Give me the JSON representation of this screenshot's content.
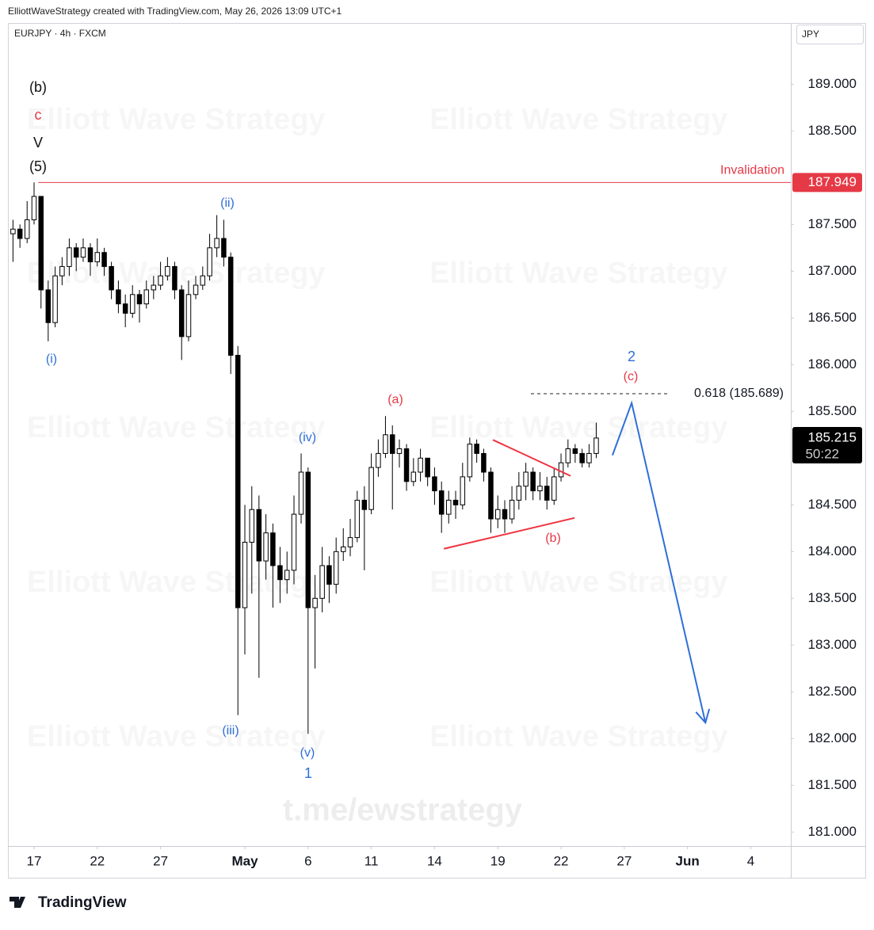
{
  "header": {
    "credit": "ElliottWaveStrategy created with TradingView.com, May 26, 2026 13:09 UTC+1",
    "logo": "TradingView"
  },
  "chart_data": {
    "type": "candlestick",
    "symbol": "EURJPY · 4h · FXCM",
    "currency": "JPY",
    "watermark": "Elliott Wave Strategy",
    "channel": "t.me/ewstrategy",
    "countdown": "50:22",
    "xlim": [
      -1.24,
      35.9
    ],
    "xticks": [
      {
        "value": 0,
        "label": "17"
      },
      {
        "value": 3,
        "label": "22"
      },
      {
        "value": 6,
        "label": "27"
      },
      {
        "value": 10,
        "label": "May"
      },
      {
        "value": 13,
        "label": "6"
      },
      {
        "value": 16,
        "label": "11"
      },
      {
        "value": 19,
        "label": "14"
      },
      {
        "value": 22,
        "label": "19"
      },
      {
        "value": 25,
        "label": "22"
      },
      {
        "value": 28,
        "label": "27"
      },
      {
        "value": 31,
        "label": "Jun"
      },
      {
        "value": 34,
        "label": "4"
      }
    ],
    "ylim": [
      180.85,
      189.63
    ],
    "yticks": [
      {
        "value": 181,
        "label": "181.000"
      },
      {
        "value": 181.5,
        "label": "181.500"
      },
      {
        "value": 182,
        "label": "182.000"
      },
      {
        "value": 182.5,
        "label": "182.500"
      },
      {
        "value": 183,
        "label": "183.000"
      },
      {
        "value": 183.5,
        "label": "183.500"
      },
      {
        "value": 184,
        "label": "184.000"
      },
      {
        "value": 184.5,
        "label": "184.500"
      },
      {
        "value": 185.5,
        "label": "185.500"
      },
      {
        "value": 186,
        "label": "186.000"
      },
      {
        "value": 186.5,
        "label": "186.500"
      },
      {
        "value": 187,
        "label": "187.000"
      },
      {
        "value": 187.5,
        "label": "187.500"
      },
      {
        "value": 188.5,
        "label": "188.500"
      },
      {
        "value": 189,
        "label": "189.000"
      }
    ],
    "x": [
      -1,
      -0.67,
      -0.33,
      0,
      0.33,
      0.67,
      1,
      1.33,
      1.67,
      2,
      2.33,
      2.67,
      3,
      3.33,
      3.67,
      4,
      4.33,
      4.67,
      5,
      5.33,
      5.67,
      6,
      6.33,
      6.67,
      7,
      7.33,
      7.67,
      8,
      8.33,
      8.67,
      9,
      9.33,
      9.67,
      10,
      10.33,
      10.67,
      11,
      11.33,
      11.67,
      12,
      12.33,
      12.67,
      13,
      13.33,
      13.67,
      14,
      14.33,
      14.67,
      15,
      15.33,
      15.67,
      16,
      16.33,
      16.67,
      17,
      17.33,
      17.67,
      18,
      18.33,
      18.67,
      19,
      19.33,
      19.67,
      20,
      20.33,
      20.67,
      21,
      21.33,
      21.67,
      22,
      22.33,
      22.67,
      23,
      23.33,
      23.67,
      24,
      24.33,
      24.67,
      25,
      25.33,
      25.67,
      26,
      26.33,
      26.67
    ],
    "open": [
      187.4,
      187.45,
      187.35,
      187.55,
      187.8,
      186.8,
      186.45,
      186.95,
      187.05,
      187.25,
      187.15,
      187.25,
      187.1,
      187.2,
      187.05,
      186.8,
      186.65,
      186.55,
      186.75,
      186.65,
      186.8,
      186.85,
      186.95,
      187.05,
      186.8,
      186.3,
      186.75,
      186.85,
      186.95,
      187.25,
      187.35,
      187.15,
      186.1,
      183.4,
      184.1,
      184.45,
      183.9,
      184.2,
      183.85,
      183.7,
      183.8,
      184.4,
      184.85,
      183.4,
      183.5,
      183.85,
      183.65,
      184,
      184.05,
      184.15,
      184.55,
      184.45,
      184.9,
      185.05,
      185.25,
      185.05,
      185.1,
      184.75,
      184.85,
      185,
      184.8,
      184.65,
      184.4,
      184.55,
      184.5,
      184.8,
      185.15,
      185.05,
      184.85,
      184.35,
      184.45,
      184.35,
      184.55,
      184.7,
      184.85,
      184.65,
      184.7,
      184.55,
      184.8,
      184.95,
      185.1,
      185.05,
      184.95,
      185.05
    ],
    "high": [
      187.55,
      187.5,
      187.75,
      187.95,
      187.75,
      186.9,
      187.05,
      187.15,
      187.35,
      187.3,
      187.35,
      187.3,
      187.35,
      187.25,
      187.1,
      186.9,
      186.75,
      186.85,
      186.8,
      186.9,
      186.95,
      187.1,
      187.15,
      187.1,
      186.85,
      186.9,
      186.95,
      187.05,
      187.4,
      187.6,
      187.55,
      187.2,
      186.2,
      184.5,
      184.7,
      184.6,
      184.4,
      184.3,
      184.05,
      184,
      184.6,
      185.05,
      184.9,
      183.75,
      184.05,
      183.95,
      184.15,
      184.25,
      184.35,
      184.65,
      184.7,
      185.05,
      185.2,
      185.45,
      185.35,
      185.2,
      185.15,
      185,
      185.1,
      185,
      184.9,
      184.75,
      184.65,
      184.65,
      184.95,
      185.22,
      185.2,
      185.1,
      184.9,
      184.6,
      184.55,
      184.7,
      184.85,
      184.95,
      184.9,
      184.85,
      184.8,
      184.9,
      185.05,
      185.2,
      185.15,
      185.1,
      185.15,
      185.38
    ],
    "low": [
      187.1,
      187.25,
      187.3,
      187.5,
      186.6,
      186.25,
      186.4,
      186.85,
      186.95,
      187,
      187.1,
      186.95,
      187.05,
      186.95,
      186.7,
      186.55,
      186.4,
      186.5,
      186.45,
      186.6,
      186.7,
      186.8,
      186.9,
      186.7,
      186.05,
      186.25,
      186.7,
      186.8,
      186.9,
      187.15,
      187.05,
      185.9,
      182.25,
      182.9,
      183.55,
      182.65,
      183.7,
      183.4,
      183.45,
      183.55,
      183.65,
      184.3,
      182.05,
      182.75,
      183.35,
      183.45,
      183.55,
      183.9,
      183.95,
      184.1,
      183.8,
      184.4,
      184.8,
      185,
      184.45,
      184.9,
      184.65,
      184.7,
      184.75,
      184.7,
      184.5,
      184.2,
      184.3,
      184.35,
      184.45,
      184.75,
      184.95,
      184.75,
      184.2,
      184.25,
      184.2,
      184.3,
      184.45,
      184.55,
      184.55,
      184.55,
      184.45,
      184.5,
      184.75,
      184.9,
      184.95,
      184.9,
      184.9,
      185
    ],
    "close": [
      187.45,
      187.35,
      187.55,
      187.8,
      186.8,
      186.45,
      186.95,
      187.05,
      187.25,
      187.15,
      187.25,
      187.1,
      187.2,
      187.05,
      186.8,
      186.65,
      186.55,
      186.75,
      186.65,
      186.8,
      186.85,
      186.95,
      187.05,
      186.8,
      186.3,
      186.75,
      186.85,
      186.95,
      187.25,
      187.35,
      187.15,
      186.1,
      183.4,
      184.1,
      184.45,
      183.9,
      184.2,
      183.85,
      183.7,
      183.8,
      184.4,
      184.85,
      183.4,
      183.5,
      183.85,
      183.65,
      184,
      184.05,
      184.15,
      184.55,
      184.45,
      184.9,
      185.05,
      185.25,
      185.05,
      185.1,
      184.75,
      184.85,
      185,
      184.8,
      184.65,
      184.4,
      184.55,
      184.5,
      184.8,
      185.15,
      185.05,
      184.85,
      184.35,
      184.45,
      184.35,
      184.55,
      184.7,
      184.85,
      184.65,
      184.7,
      184.55,
      184.8,
      184.95,
      185.1,
      185.05,
      184.95,
      185.05,
      185.215
    ],
    "invalidation": {
      "label": "Invalidation",
      "value": 187.949,
      "x_start": 0.2,
      "color": "#e53946"
    },
    "fib": {
      "label": "0.618 (185.689)",
      "value": 185.689,
      "x": [
        23.57,
        30.15
      ]
    },
    "trendlines": [
      {
        "color": "#f0323f",
        "x": [
          19.44,
          25.64
        ],
        "y": [
          184.03,
          184.36
        ]
      },
      {
        "color": "#f0323f",
        "x": [
          21.77,
          25.45
        ],
        "y": [
          185.195,
          184.81
        ]
      }
    ],
    "projection": {
      "color": "#2f6fd8",
      "x": [
        27.44,
        28.35,
        31.85
      ],
      "y": [
        185.03,
        185.59,
        182.17
      ]
    },
    "annotations": [
      {
        "text": "(b)",
        "color": "#111"
      },
      {
        "text": "c",
        "color": "#e53946"
      },
      {
        "text": "V",
        "color": "#111"
      },
      {
        "text": "(5)",
        "color": "#111"
      },
      {
        "text": "(i)",
        "color": "#2f6fd8"
      },
      {
        "text": "(ii)",
        "color": "#2f6fd8"
      },
      {
        "text": "(iii)",
        "color": "#2f6fd8"
      },
      {
        "text": "(iv)",
        "color": "#2f6fd8"
      },
      {
        "text": "(v)",
        "color": "#2f6fd8"
      },
      {
        "text": "1",
        "color": "#2f6fd8"
      },
      {
        "text": "(a)",
        "color": "#e53946"
      },
      {
        "text": "(b)",
        "color": "#e53946"
      },
      {
        "text": "(c)",
        "color": "#e53946"
      },
      {
        "text": "2",
        "color": "#2f6fd8"
      }
    ]
  }
}
